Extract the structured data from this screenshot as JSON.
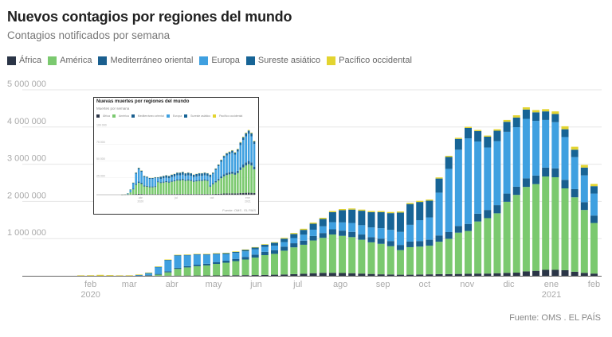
{
  "title": "Nuevos contagios por regiones del mundo",
  "subtitle": "Contagios notificados por semana",
  "source": "Fuente: OMS . EL PAÍS",
  "legend": [
    {
      "label": "África",
      "color": "#2b3547"
    },
    {
      "label": "América",
      "color": "#7bc96f"
    },
    {
      "label": "Mediterráneo oriental",
      "color": "#1a5f8f"
    },
    {
      "label": "Europa",
      "color": "#3fa0e0"
    },
    {
      "label": "Sureste asiático",
      "color": "#176496"
    },
    {
      "label": "Pacífico occidental",
      "color": "#e3d430"
    }
  ],
  "chart_data": [
    {
      "type": "bar",
      "stacked": true,
      "title": "Nuevos contagios por regiones del mundo",
      "subtitle": "Contagios notificados por semana",
      "xlabel": "",
      "ylabel": "",
      "ylim": [
        0,
        5000000
      ],
      "yticks": [
        1000000,
        2000000,
        3000000,
        4000000,
        5000000
      ],
      "ytick_labels": [
        "1 000 000",
        "2 000 000",
        "3 000 000",
        "4 000 000",
        "5 000 000"
      ],
      "xtick_labels": [
        {
          "label": "feb",
          "sub": "2020",
          "week": 1
        },
        {
          "label": "mar",
          "week": 5
        },
        {
          "label": "abr",
          "week": 9.4
        },
        {
          "label": "may",
          "week": 13.7
        },
        {
          "label": "jun",
          "week": 18.1
        },
        {
          "label": "jul",
          "week": 22.4
        },
        {
          "label": "ago",
          "week": 26.8
        },
        {
          "label": "sep",
          "week": 31.2
        },
        {
          "label": "oct",
          "week": 35.5
        },
        {
          "label": "nov",
          "week": 39.9
        },
        {
          "label": "dic",
          "week": 44.2
        },
        {
          "label": "ene",
          "sub": "2021",
          "week": 48.6
        },
        {
          "label": "feb",
          "week": 53
        }
      ],
      "grid": true,
      "legend_position": "top-left",
      "series_names": [
        "África",
        "América",
        "Mediterráneo oriental",
        "Europa",
        "Sureste asiático",
        "Pacífico occidental"
      ],
      "series_colors": [
        "#2b3547",
        "#7bc96f",
        "#1a5f8f",
        "#3fa0e0",
        "#176496",
        "#e3d430"
      ],
      "values_thousands": [
        [
          0,
          0,
          0,
          0,
          0,
          12
        ],
        [
          0,
          0,
          0,
          0,
          0,
          15
        ],
        [
          0,
          0,
          0,
          1,
          0,
          25
        ],
        [
          0,
          0,
          0,
          2,
          0,
          18
        ],
        [
          0,
          0,
          0,
          4,
          0,
          8
        ],
        [
          0,
          0,
          1,
          6,
          0,
          6
        ],
        [
          0,
          1,
          8,
          20,
          0,
          6
        ],
        [
          0,
          5,
          15,
          60,
          1,
          6
        ],
        [
          1,
          30,
          20,
          190,
          2,
          8
        ],
        [
          3,
          90,
          30,
          300,
          5,
          10
        ],
        [
          5,
          180,
          30,
          330,
          8,
          12
        ],
        [
          6,
          220,
          35,
          290,
          10,
          12
        ],
        [
          8,
          250,
          40,
          270,
          12,
          10
        ],
        [
          9,
          270,
          45,
          240,
          15,
          10
        ],
        [
          10,
          310,
          50,
          210,
          18,
          10
        ],
        [
          12,
          340,
          55,
          180,
          22,
          10
        ],
        [
          15,
          380,
          60,
          160,
          30,
          10
        ],
        [
          18,
          420,
          70,
          150,
          40,
          10
        ],
        [
          20,
          470,
          80,
          140,
          50,
          12
        ],
        [
          25,
          530,
          90,
          130,
          60,
          15
        ],
        [
          30,
          560,
          100,
          120,
          80,
          15
        ],
        [
          35,
          640,
          110,
          120,
          95,
          20
        ],
        [
          45,
          720,
          110,
          140,
          110,
          25
        ],
        [
          55,
          780,
          110,
          160,
          130,
          30
        ],
        [
          70,
          880,
          120,
          170,
          160,
          30
        ],
        [
          80,
          940,
          130,
          180,
          200,
          30
        ],
        [
          80,
          1030,
          140,
          190,
          270,
          30
        ],
        [
          75,
          1000,
          140,
          220,
          330,
          30
        ],
        [
          70,
          970,
          140,
          240,
          360,
          30
        ],
        [
          60,
          910,
          140,
          250,
          390,
          30
        ],
        [
          50,
          850,
          140,
          260,
          410,
          30
        ],
        [
          40,
          820,
          140,
          280,
          430,
          30
        ],
        [
          35,
          760,
          140,
          300,
          450,
          30
        ],
        [
          30,
          660,
          140,
          350,
          520,
          30
        ],
        [
          30,
          740,
          150,
          450,
          560,
          30
        ],
        [
          35,
          750,
          150,
          560,
          490,
          30
        ],
        [
          40,
          770,
          160,
          600,
          450,
          30
        ],
        [
          45,
          870,
          170,
          1150,
          380,
          30
        ],
        [
          45,
          950,
          180,
          1700,
          320,
          30
        ],
        [
          50,
          1110,
          180,
          2050,
          290,
          30
        ],
        [
          55,
          1150,
          190,
          2300,
          280,
          30
        ],
        [
          60,
          1400,
          210,
          1940,
          280,
          30
        ],
        [
          60,
          1490,
          220,
          1680,
          290,
          30
        ],
        [
          70,
          1610,
          220,
          1720,
          280,
          40
        ],
        [
          80,
          1910,
          220,
          1660,
          270,
          50
        ],
        [
          85,
          2090,
          220,
          1600,
          260,
          60
        ],
        [
          120,
          2270,
          230,
          1600,
          250,
          60
        ],
        [
          135,
          2330,
          230,
          1470,
          230,
          60
        ],
        [
          160,
          2510,
          240,
          1280,
          230,
          60
        ],
        [
          160,
          2490,
          240,
          1240,
          220,
          70
        ],
        [
          150,
          2200,
          230,
          1150,
          210,
          80
        ],
        [
          110,
          2000,
          220,
          860,
          200,
          80
        ],
        [
          80,
          1690,
          210,
          720,
          210,
          70
        ],
        [
          60,
          1360,
          200,
          590,
          200,
          60
        ]
      ]
    },
    {
      "type": "bar",
      "stacked": true,
      "title": "Nuevas muertes por regiones del mundo",
      "subtitle": "Muertes por semana",
      "ylim": [
        0,
        100000
      ],
      "ytick_labels": [
        "25 000",
        "50 000",
        "75 000",
        "100 000"
      ],
      "xtick_labels": [
        {
          "label": "abr",
          "sub": "2020"
        },
        {
          "label": "jul"
        },
        {
          "label": "oct"
        },
        {
          "label": "ene",
          "sub": "2021"
        }
      ],
      "source": "Fuente: OMS . EL PAÍS",
      "series_names": [
        "África",
        "América",
        "Mediterráneo oriental",
        "Europa",
        "Sureste asiático",
        "Pacífico occidental"
      ],
      "totals_approx": [
        0,
        0,
        0,
        0,
        0,
        0,
        0,
        100,
        500,
        2000,
        8000,
        18000,
        33000,
        40000,
        36000,
        28000,
        27000,
        25000,
        25000,
        26000,
        26000,
        27000,
        28000,
        29000,
        28000,
        30000,
        31000,
        33000,
        33000,
        34000,
        32000,
        33000,
        32000,
        30000,
        31000,
        32000,
        32000,
        33000,
        32000,
        30000,
        33000,
        39000,
        45000,
        52000,
        58000,
        62000,
        64000,
        66000,
        63000,
        68000,
        78000,
        86000,
        92000,
        96000,
        92000,
        80000
      ]
    }
  ]
}
